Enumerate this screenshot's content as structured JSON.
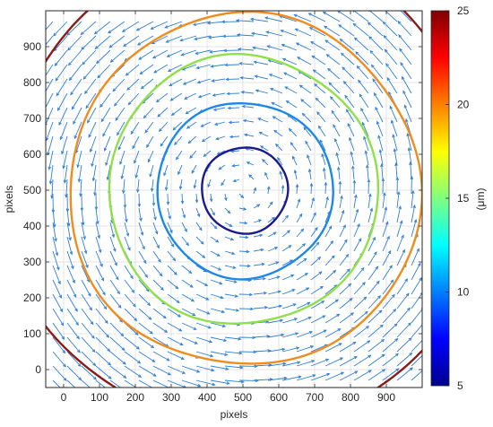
{
  "chart_data": {
    "type": "contour",
    "title": "",
    "xlabel": "pixels",
    "ylabel": "pixels",
    "xlim": [
      -50,
      1000
    ],
    "ylim": [
      -50,
      1000
    ],
    "xticks": [
      0,
      100,
      200,
      300,
      400,
      500,
      600,
      700,
      800,
      900
    ],
    "yticks": [
      0,
      100,
      200,
      300,
      400,
      500,
      600,
      700,
      800,
      900
    ],
    "grid": true,
    "colorbar": {
      "label": "(μm)",
      "min": 5,
      "max": 25,
      "ticks": [
        5,
        10,
        15,
        20,
        25
      ],
      "colormap": "jet"
    },
    "vector_field": {
      "type": "quiver",
      "center": [
        500,
        500
      ],
      "rotation": "counterclockwise",
      "color": "#2f7fd4",
      "grid_spacing": 40
    },
    "contours": [
      {
        "level": 7,
        "center": [
          505,
          500
        ],
        "radius": 120,
        "color": "#1a1a8c"
      },
      {
        "level": 11,
        "center": [
          505,
          500
        ],
        "radius": 245,
        "color": "#1e88e5"
      },
      {
        "level": 16,
        "center": [
          500,
          500
        ],
        "radius": 375,
        "color": "#8fe04a"
      },
      {
        "level": 20,
        "center": [
          505,
          500
        ],
        "radius": 490,
        "color": "#f08c1e"
      },
      {
        "level": 24,
        "center": [
          500,
          500
        ],
        "radius": 665,
        "color": "#8b1a1a"
      }
    ]
  }
}
